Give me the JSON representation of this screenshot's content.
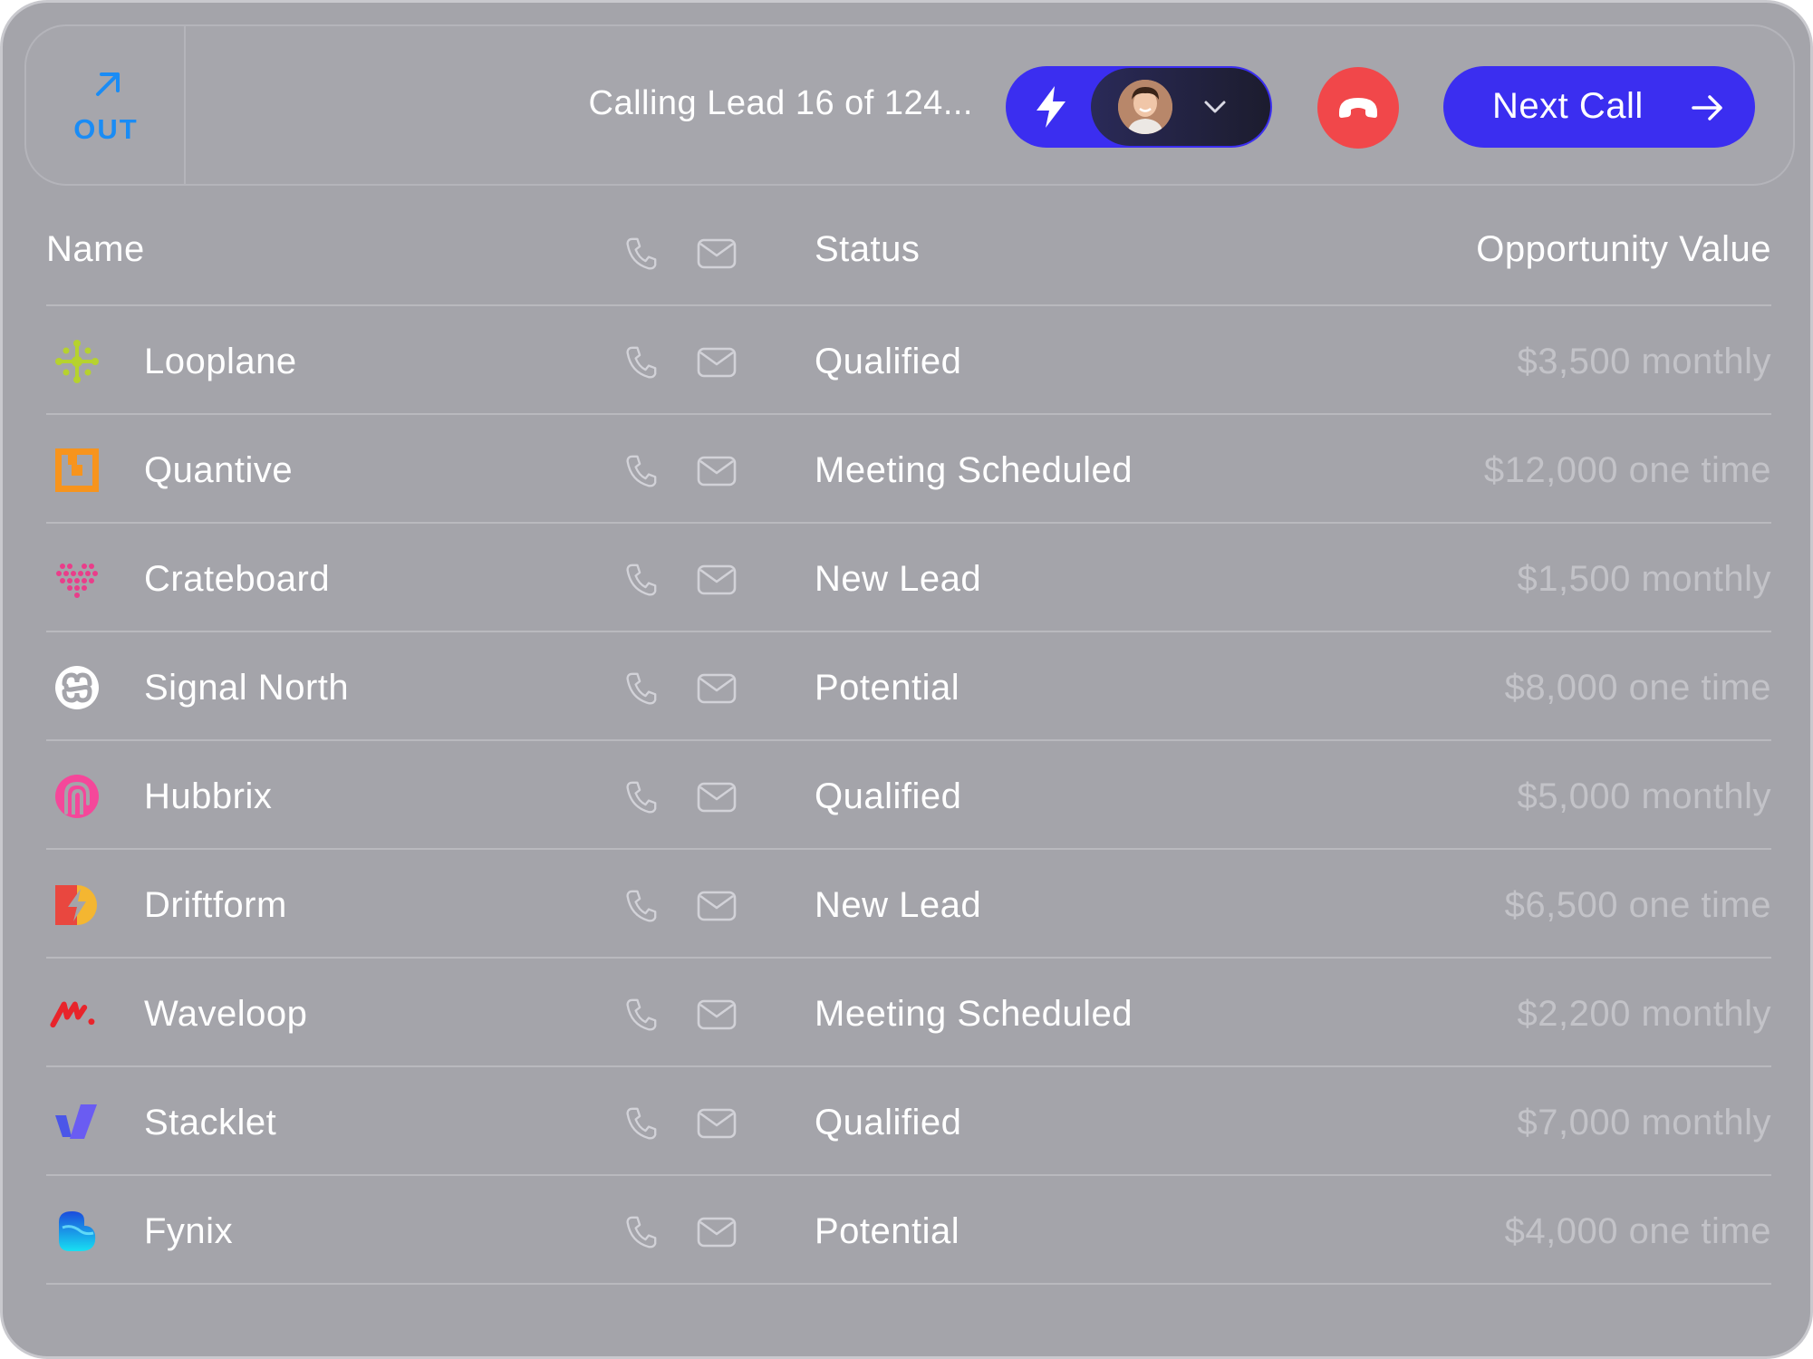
{
  "call_bar": {
    "direction_label": "OUT",
    "status_text": "Calling Lead 16 of 124...",
    "next_call_label": "Next Call",
    "accent_color": "#3b2ef0",
    "hangup_color": "#f1474a"
  },
  "table": {
    "columns": {
      "name": "Name",
      "status": "Status",
      "value": "Opportunity Value"
    },
    "rows": [
      {
        "logo": "looplane-logo-icon",
        "name": "Looplane",
        "status": "Qualified",
        "value": "$3,500 monthly"
      },
      {
        "logo": "quantive-logo-icon",
        "name": "Quantive",
        "status": "Meeting Scheduled",
        "value": "$12,000 one time"
      },
      {
        "logo": "crateboard-logo-icon",
        "name": "Crateboard",
        "status": "New Lead",
        "value": "$1,500 monthly"
      },
      {
        "logo": "signal-north-logo-icon",
        "name": "Signal North",
        "status": "Potential",
        "value": "$8,000 one time"
      },
      {
        "logo": "hubbrix-logo-icon",
        "name": "Hubbrix",
        "status": "Qualified",
        "value": "$5,000 monthly"
      },
      {
        "logo": "driftform-logo-icon",
        "name": "Driftform",
        "status": "New Lead",
        "value": "$6,500 one time"
      },
      {
        "logo": "waveloop-logo-icon",
        "name": "Waveloop",
        "status": "Meeting Scheduled",
        "value": "$2,200 monthly"
      },
      {
        "logo": "stacklet-logo-icon",
        "name": "Stacklet",
        "status": "Qualified",
        "value": "$7,000 monthly"
      },
      {
        "logo": "fynix-logo-icon",
        "name": "Fynix",
        "status": "Potential",
        "value": "$4,000 one time"
      }
    ]
  }
}
